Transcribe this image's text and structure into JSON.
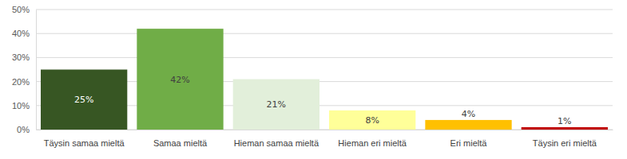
{
  "chart_data": {
    "type": "bar",
    "categories": [
      "Täysin samaa mieltä",
      "Samaa mieltä",
      "Hieman samaa mieltä",
      "Hieman eri mieltä",
      "Eri mieltä",
      "Täysin eri mieltä"
    ],
    "values": [
      25,
      42,
      21,
      8,
      4,
      1
    ],
    "value_labels": [
      "25%",
      "42%",
      "21%",
      "8%",
      "4%",
      "1%"
    ],
    "colors": [
      "#375623",
      "#70ad47",
      "#e2efda",
      "#ffff99",
      "#ffc000",
      "#c00000"
    ],
    "ylim": [
      0,
      50
    ],
    "yticks": [
      {
        "value": 0,
        "label": "0%"
      },
      {
        "value": 10,
        "label": "10%"
      },
      {
        "value": 20,
        "label": "20%"
      },
      {
        "value": 30,
        "label": "30%"
      },
      {
        "value": 40,
        "label": "40%"
      },
      {
        "value": 50,
        "label": "50%"
      }
    ],
    "grid": true,
    "data_labels": true
  }
}
